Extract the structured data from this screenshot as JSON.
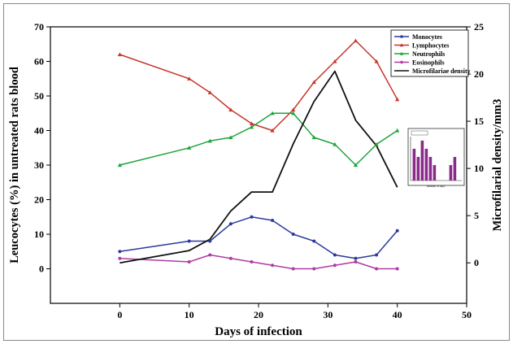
{
  "chart_data": {
    "type": "line",
    "title": "",
    "xlabel": "Days of infection",
    "ylabel_left": "Leucocytes (%) in untreated rats blood",
    "ylabel_right": "Microfilarial density/mm3",
    "xlim": [
      -10,
      50
    ],
    "ylim_left": [
      -10,
      70
    ],
    "ylim_right": [
      -4.29,
      25
    ],
    "x_ticks": [
      0,
      10,
      20,
      30,
      40,
      50
    ],
    "y_left_ticks": [
      0,
      10,
      20,
      30,
      40,
      50,
      60,
      70
    ],
    "y_right_ticks": [
      0,
      5,
      10,
      15,
      20,
      25
    ],
    "legend_position": "top-right",
    "grid": false,
    "series": [
      {
        "name": "Monocytes",
        "axis": "left",
        "color": "#2b3a9c",
        "marker": "circle",
        "x": [
          0,
          10,
          13,
          16,
          19,
          22,
          25,
          28,
          31,
          34,
          37,
          40
        ],
        "y": [
          5,
          8,
          8,
          13,
          15,
          14,
          10,
          8,
          4,
          3,
          4,
          11
        ]
      },
      {
        "name": "Lymphocytes",
        "axis": "left",
        "color": "#c8342a",
        "marker": "triangle",
        "x": [
          0,
          10,
          13,
          16,
          19,
          22,
          25,
          28,
          31,
          34,
          37,
          40
        ],
        "y": [
          62,
          55,
          51,
          46,
          42,
          40,
          46,
          54,
          60,
          66,
          60,
          49
        ]
      },
      {
        "name": "Neutrophils",
        "axis": "left",
        "color": "#1fa33a",
        "marker": "triangle",
        "x": [
          0,
          10,
          13,
          16,
          19,
          22,
          25,
          28,
          31,
          34,
          37,
          40
        ],
        "y": [
          30,
          35,
          37,
          38,
          41,
          45,
          45,
          38,
          36,
          30,
          36,
          40
        ]
      },
      {
        "name": "Eosinophils",
        "axis": "left",
        "color": "#b03aa4",
        "marker": "circle",
        "x": [
          0,
          10,
          13,
          16,
          19,
          22,
          25,
          28,
          31,
          34,
          37,
          40
        ],
        "y": [
          3,
          2,
          4,
          3,
          2,
          1,
          0,
          0,
          1,
          2,
          0,
          0
        ]
      },
      {
        "name": "Microfilariae density",
        "axis": "right",
        "color": "#111111",
        "marker": "none",
        "x": [
          0,
          10,
          13,
          16,
          19,
          22,
          25,
          28,
          31,
          34,
          37,
          40
        ],
        "y": [
          0,
          1.3,
          2.5,
          5.5,
          7.5,
          7.5,
          12.6,
          17.1,
          20.3,
          15.1,
          12.4,
          8.0
        ]
      }
    ],
    "inset": {
      "type": "bar",
      "color": "#8b2a8b",
      "xlabel": "Number of days",
      "values": [
        3.9,
        2.9,
        4.9,
        3.9,
        2.9,
        1.9,
        0,
        0,
        0,
        1.9,
        2.9,
        0
      ]
    }
  }
}
